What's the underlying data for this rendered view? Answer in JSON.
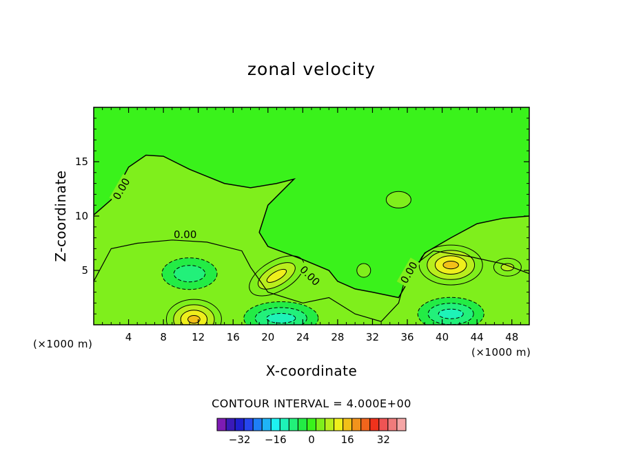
{
  "chart_data": {
    "type": "contour",
    "title": "zonal velocity",
    "xlabel": "X-coordinate",
    "ylabel": "Z-coordinate",
    "x_unit_left": "(×1000 m)",
    "x_unit_right": "(×1000 m)",
    "xlim": [
      0,
      50
    ],
    "ylim": [
      0,
      20
    ],
    "xticks": [
      4,
      8,
      12,
      16,
      20,
      24,
      28,
      32,
      36,
      40,
      44,
      48
    ],
    "yticks": [
      5,
      10,
      15
    ],
    "contour_interval_text": "CONTOUR INTERVAL = 4.000E+00",
    "contour_interval": 4,
    "contour_labels": [
      "0.00",
      "0.00",
      "0.00",
      "0.00"
    ],
    "field_features": [
      {
        "x": 11.5,
        "z": 0.5,
        "value": 16
      },
      {
        "x": 21,
        "z": 4.5,
        "value": 12
      },
      {
        "x": 41,
        "z": 5.5,
        "value": 16
      },
      {
        "x": 47.5,
        "z": 5.3,
        "value": 8
      },
      {
        "x": 11,
        "z": 4.7,
        "value": -8
      },
      {
        "x": 21.5,
        "z": 0.6,
        "value": -12
      },
      {
        "x": 41,
        "z": 1.0,
        "value": -12
      },
      {
        "x": 35,
        "z": 11.5,
        "value": 2
      },
      {
        "x": 31,
        "z": 5.0,
        "value": 2
      }
    ],
    "colorbar": {
      "tick_labels": [
        "-32",
        "-16",
        "0",
        "16",
        "32"
      ],
      "tick_values": [
        -32,
        -16,
        0,
        16,
        32
      ],
      "colors": [
        "#7e1bb4",
        "#3a1ab8",
        "#1f1fcf",
        "#2646ee",
        "#1e7ff7",
        "#1fb4f7",
        "#1ef1f1",
        "#1ef3b8",
        "#22f07a",
        "#23ec45",
        "#3af21b",
        "#7fef1c",
        "#b9ee1d",
        "#efef1c",
        "#f2c018",
        "#f2931c",
        "#f1651c",
        "#f0321c",
        "#ef5454",
        "#f07b7b",
        "#f5a6a6"
      ]
    }
  }
}
